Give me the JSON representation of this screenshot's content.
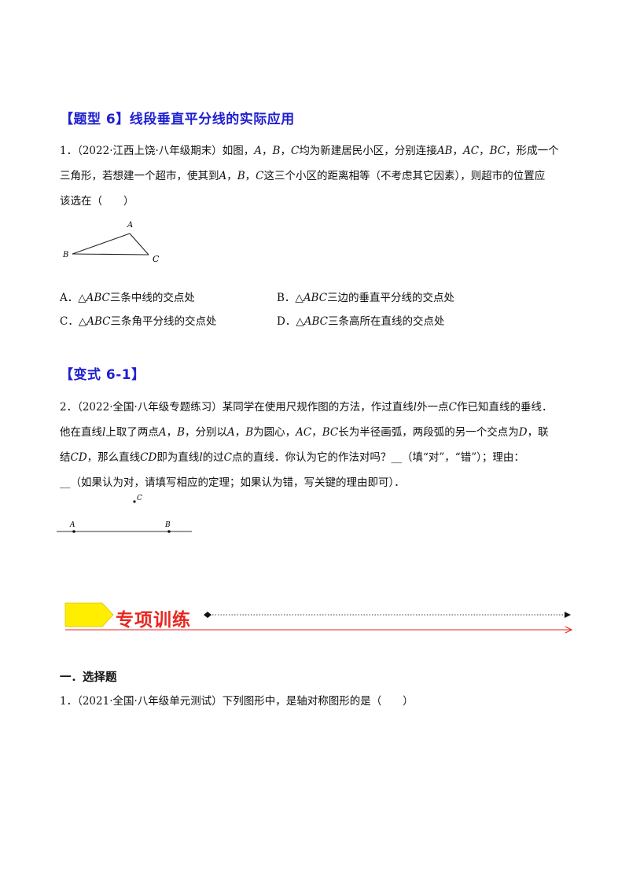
{
  "type6": {
    "heading": "【题型 6】线段垂直平分线的实际应用",
    "q1": {
      "num": "1．",
      "source": "（2022·江西上饶·八年级期末）",
      "line1_a": "如图，",
      "line1_b": "A",
      "line1_c": "，",
      "line1_d": "B",
      "line1_e": "，",
      "line1_f": "C",
      "line1_g": "均为新建居民小区，分别连接",
      "line1_h": "AB",
      "line1_i": "，",
      "line1_j": "AC",
      "line1_k": "，",
      "line1_l": "BC",
      "line1_m": "，形成一个",
      "line2_a": "三角形，若想建一个超市，使其到",
      "line2_b": "A",
      "line2_c": "，",
      "line2_d": "B",
      "line2_e": "，",
      "line2_f": "C",
      "line2_g": "这三个小区的距离相等（不考虑其它因素），则超市的位置应",
      "line3": "该选在（　　）",
      "figure": {
        "A": "A",
        "B": "B",
        "C": "C"
      },
      "options": {
        "a_label": "A．△",
        "a_abc": "ABC",
        "a_text": "三条中线的交点处",
        "b_label": "B．△",
        "b_abc": "ABC",
        "b_text": "三边的垂直平分线的交点处",
        "c_label": "C．△",
        "c_abc": "ABC",
        "c_text": "三条角平分线的交点处",
        "d_label": "D．△",
        "d_abc": "ABC",
        "d_text": "三条高所在直线的交点处"
      }
    }
  },
  "variant": {
    "heading": "【变式 6-1】",
    "q2": {
      "num": "2．",
      "source": "（2022·全国·八年级专题练习）",
      "l1_a": "某同学在使用尺规作图的方法，作过直线",
      "l1_b": "l",
      "l1_c": "外一点",
      "l1_d": "C",
      "l1_e": "作已知直线的垂线．",
      "l2_a": "他在直线",
      "l2_b": "l",
      "l2_c": "上取了两点",
      "l2_d": "A",
      "l2_e": "，",
      "l2_f": "B",
      "l2_g": "，分别以",
      "l2_h": "A",
      "l2_i": "，",
      "l2_j": "B",
      "l2_k": "为圆心，",
      "l2_l": "AC",
      "l2_m": "，",
      "l2_n": "BC",
      "l2_o": "长为半径画弧，两段弧的另一个交点为",
      "l2_p": "D",
      "l2_q": "，联",
      "l3_a": "结",
      "l3_b": "CD",
      "l3_c": "，那么直线",
      "l3_d": "CD",
      "l3_e": "即为直线",
      "l3_f": "l",
      "l3_g": "的过",
      "l3_h": "C",
      "l3_i": "点的直线．你认为它的作法对吗？__（填“对”，“错”）；理由：",
      "l4": "__（如果认为对，请填写相应的定理；如果认为错，写关键的理由即可）．",
      "figure": {
        "A": "A",
        "B": "B",
        "C": "C"
      }
    }
  },
  "training": {
    "banner": "专项训练",
    "section": "一．选择题",
    "q1": {
      "num": "1．",
      "source": "（2021·全国·八年级单元测试）",
      "text": "下列图形中，是轴对称图形的是（　　）"
    }
  },
  "colors": {
    "heading": "#1f1fd0",
    "banner_text": "#e8261f",
    "banner_shape": "#ffee00",
    "rule": "#e8261f"
  }
}
